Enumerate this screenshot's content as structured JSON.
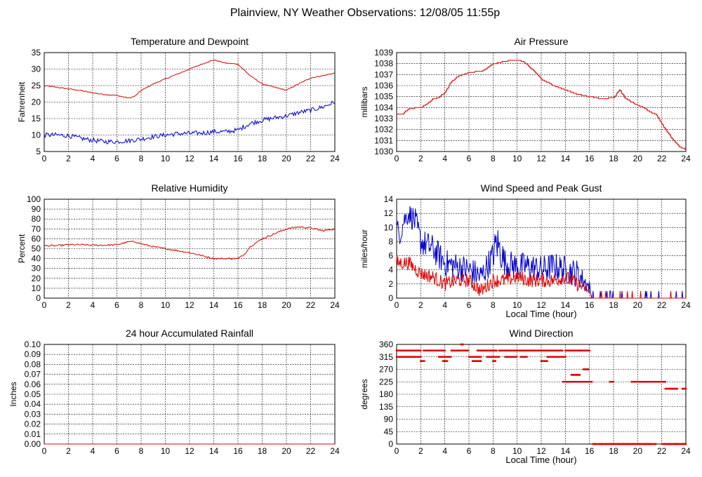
{
  "page": {
    "title": "Plainview, NY Weather Observations: 12/08/05 11:55p"
  },
  "colors": {
    "red": "#dd0000",
    "blue": "#0000cc",
    "grid": "#000000"
  },
  "chart_data": [
    {
      "id": "temp",
      "type": "line",
      "title": "Temperature and Dewpoint",
      "xlabel": "",
      "ylabel": "Fahrenheit",
      "xlim": [
        0,
        24
      ],
      "ylim": [
        5,
        35
      ],
      "xticks": [
        0,
        2,
        4,
        6,
        8,
        10,
        12,
        14,
        16,
        18,
        20,
        22,
        24
      ],
      "yticks": [
        5,
        10,
        15,
        20,
        25,
        30,
        35
      ],
      "grid": true,
      "series": [
        {
          "color": "red",
          "noise": 0.15,
          "x": [
            0,
            1,
            2,
            3,
            4,
            5,
            6,
            6.5,
            7,
            7.5,
            8,
            9,
            10,
            11,
            12,
            13,
            14,
            15,
            16,
            17,
            18,
            19,
            20,
            21,
            22,
            23,
            24
          ],
          "y": [
            25,
            24.5,
            24,
            23.5,
            22.8,
            22.3,
            22,
            21.6,
            21.2,
            21.8,
            23.5,
            25.5,
            27,
            28.5,
            30,
            31.5,
            32.8,
            31.8,
            31.5,
            28,
            25.5,
            24.5,
            23.6,
            25.5,
            27.3,
            28,
            28.8
          ]
        },
        {
          "color": "blue",
          "noise": 0.7,
          "x": [
            0,
            1,
            2,
            3,
            4,
            5,
            6,
            7,
            8,
            9,
            10,
            11,
            12,
            13,
            14,
            15,
            16,
            17,
            18,
            19,
            20,
            21,
            22,
            23,
            24
          ],
          "y": [
            10,
            10,
            9.8,
            9,
            8.4,
            8,
            8,
            8.3,
            8.8,
            9.5,
            10,
            10.4,
            10.5,
            10.6,
            11,
            11,
            11.5,
            13.5,
            14.5,
            15.2,
            15.8,
            16.8,
            17.5,
            18.5,
            20
          ]
        }
      ]
    },
    {
      "id": "pressure",
      "type": "line",
      "title": "Air Pressure",
      "xlabel": "",
      "ylabel": "millibars",
      "xlim": [
        0,
        24
      ],
      "ylim": [
        1030,
        1039
      ],
      "xticks": [
        0,
        2,
        4,
        6,
        8,
        10,
        12,
        14,
        16,
        18,
        20,
        22,
        24
      ],
      "yticks": [
        1030,
        1031,
        1032,
        1033,
        1034,
        1035,
        1036,
        1037,
        1038,
        1039
      ],
      "grid": true,
      "step": 0.1,
      "series": [
        {
          "color": "red",
          "noise": 0,
          "x": [
            0,
            0.5,
            1,
            2,
            2.5,
            3,
            3.5,
            4,
            4.5,
            5,
            5.5,
            6,
            7,
            7.5,
            8,
            8.5,
            9,
            9.5,
            10,
            10.5,
            11,
            11.5,
            12,
            13,
            14,
            15,
            16,
            17,
            18,
            18.5,
            19,
            20,
            20.5,
            21,
            21.5,
            22,
            22.5,
            23,
            23.5,
            24
          ],
          "y": [
            1033.4,
            1033.4,
            1033.9,
            1034,
            1034.3,
            1034.8,
            1034.9,
            1035.4,
            1036.3,
            1036.8,
            1037,
            1037.2,
            1037.3,
            1037.6,
            1038,
            1038.1,
            1038.2,
            1038.3,
            1038.3,
            1038.2,
            1037.7,
            1037.2,
            1036.6,
            1036,
            1035.6,
            1035.2,
            1035,
            1034.8,
            1034.9,
            1035.6,
            1034.8,
            1034.2,
            1034,
            1033.6,
            1033.4,
            1032.5,
            1031.7,
            1031,
            1030.4,
            1030.2
          ]
        }
      ]
    },
    {
      "id": "humidity",
      "type": "line",
      "title": "Relative Humidity",
      "xlabel": "",
      "ylabel": "Percent",
      "xlim": [
        0,
        24
      ],
      "ylim": [
        0,
        100
      ],
      "xticks": [
        0,
        2,
        4,
        6,
        8,
        10,
        12,
        14,
        16,
        18,
        20,
        22,
        24
      ],
      "yticks": [
        0,
        10,
        20,
        30,
        40,
        50,
        60,
        70,
        80,
        90,
        100
      ],
      "grid": true,
      "series": [
        {
          "color": "red",
          "noise": 0.8,
          "x": [
            0,
            1,
            2,
            3,
            4,
            5,
            6,
            7,
            7.5,
            8,
            9,
            10,
            11,
            12,
            13,
            14,
            15,
            16,
            16.5,
            17,
            18,
            19,
            20,
            21,
            22,
            23,
            24
          ],
          "y": [
            53,
            53,
            54,
            54,
            53.5,
            53.5,
            54,
            57,
            57,
            55,
            52,
            50,
            48,
            46,
            43,
            40,
            40,
            40,
            44,
            52,
            60,
            65,
            70,
            72,
            71,
            68,
            70
          ]
        }
      ]
    },
    {
      "id": "wind",
      "type": "line",
      "title": "Wind Speed and Peak Gust",
      "xlabel": "Local Time (hour)",
      "ylabel": "miles/hour",
      "xlim": [
        0,
        24
      ],
      "ylim": [
        0,
        14
      ],
      "xticks": [
        0,
        2,
        4,
        6,
        8,
        10,
        12,
        14,
        16,
        18,
        20,
        22,
        24
      ],
      "yticks": [
        0,
        2,
        4,
        6,
        8,
        10,
        12,
        14
      ],
      "grid": true,
      "series": [
        {
          "color": "blue",
          "jag": true,
          "x": [
            0,
            0.3,
            0.6,
            1,
            1.5,
            2,
            3,
            4,
            5,
            6,
            7,
            8,
            8.3,
            9,
            10,
            11,
            12,
            13,
            14,
            15,
            16,
            16.2,
            24
          ],
          "y": [
            10,
            9,
            11,
            12,
            11,
            8,
            7,
            5,
            4.5,
            4,
            3,
            6,
            8,
            5,
            4.5,
            4.5,
            4,
            4.5,
            4,
            3.5,
            1.5,
            0,
            0
          ],
          "amp": [
            1.5,
            1.5,
            1.5,
            1.5,
            2,
            2,
            2,
            2,
            2,
            2,
            2,
            2,
            3,
            2,
            2,
            2,
            2,
            2,
            2,
            2,
            1,
            0,
            0
          ]
        },
        {
          "color": "red",
          "jag": true,
          "x": [
            0,
            1,
            2,
            3,
            4,
            5,
            6,
            7,
            8,
            9,
            10,
            11,
            12,
            13,
            14,
            15,
            16,
            16.2,
            24
          ],
          "y": [
            5,
            5,
            3.5,
            3,
            2,
            2.5,
            2.5,
            1,
            2.5,
            2.5,
            3,
            2.5,
            2.5,
            2.5,
            3,
            2,
            1,
            0,
            0
          ],
          "amp": [
            1,
            1,
            1,
            1,
            1,
            1,
            1,
            1,
            1,
            1,
            1,
            1,
            1,
            1,
            1,
            1,
            0.5,
            0,
            0
          ]
        }
      ]
    },
    {
      "id": "rain",
      "type": "line",
      "title": "24 hour Accumulated Rainfall",
      "xlabel": "",
      "ylabel": "Inches",
      "xlim": [
        0,
        24
      ],
      "ylim": [
        0,
        0.1
      ],
      "xticks": [
        0,
        2,
        4,
        6,
        8,
        10,
        12,
        14,
        16,
        18,
        20,
        22,
        24
      ],
      "yticks": [
        0,
        0.01,
        0.02,
        0.03,
        0.04,
        0.05,
        0.06,
        0.07,
        0.08,
        0.09,
        0.1
      ],
      "ytick_labels": [
        "0.00",
        "0.01",
        "0.02",
        "0.03",
        "0.04",
        "0.05",
        "0.06",
        "0.07",
        "0.08",
        "0.09",
        "0.10"
      ],
      "grid": true,
      "series": [
        {
          "color": "red",
          "noise": 0,
          "x": [
            0,
            24
          ],
          "y": [
            0,
            0
          ]
        }
      ]
    },
    {
      "id": "direction",
      "type": "scatter",
      "title": "Wind Direction",
      "xlabel": "Local Time (hour)",
      "ylabel": "degrees",
      "xlim": [
        0,
        24
      ],
      "ylim": [
        0,
        360
      ],
      "xticks": [
        0,
        2,
        4,
        6,
        8,
        10,
        12,
        14,
        16,
        18,
        20,
        22,
        24
      ],
      "yticks": [
        0,
        45,
        90,
        135,
        180,
        225,
        270,
        315,
        360
      ],
      "grid": true,
      "series": [
        {
          "color": "red",
          "segments": [
            [
              0,
              2,
              338
            ],
            [
              0,
              2,
              315
            ],
            [
              2.2,
              4,
              338
            ],
            [
              2,
              2.3,
              300
            ],
            [
              3.5,
              4.5,
              315
            ],
            [
              3.8,
              4.2,
              300
            ],
            [
              4.5,
              6,
              338
            ],
            [
              5.3,
              5.5,
              360
            ],
            [
              6,
              7,
              315
            ],
            [
              6.3,
              7,
              300
            ],
            [
              6.7,
              8.3,
              338
            ],
            [
              7.5,
              8.5,
              315
            ],
            [
              8,
              8.2,
              300
            ],
            [
              8.5,
              10,
              338
            ],
            [
              9,
              10,
              315
            ],
            [
              10,
              12.7,
              338
            ],
            [
              10.3,
              10.8,
              315
            ],
            [
              12,
              12.5,
              300
            ],
            [
              12.5,
              14,
              315
            ],
            [
              12.8,
              13.8,
              338
            ],
            [
              14,
              16,
              338
            ],
            [
              13.8,
              16,
              225
            ],
            [
              14.5,
              15.2,
              250
            ],
            [
              15.5,
              16,
              270
            ],
            [
              16,
              16.2,
              225
            ],
            [
              16.3,
              21.5,
              0
            ],
            [
              17.7,
              18,
              225
            ],
            [
              19.5,
              21.5,
              225
            ],
            [
              21.5,
              22.3,
              225
            ],
            [
              22,
              23,
              0
            ],
            [
              22.3,
              23.3,
              200
            ],
            [
              23,
              24,
              0
            ],
            [
              23.7,
              24,
              200
            ]
          ]
        }
      ]
    }
  ]
}
